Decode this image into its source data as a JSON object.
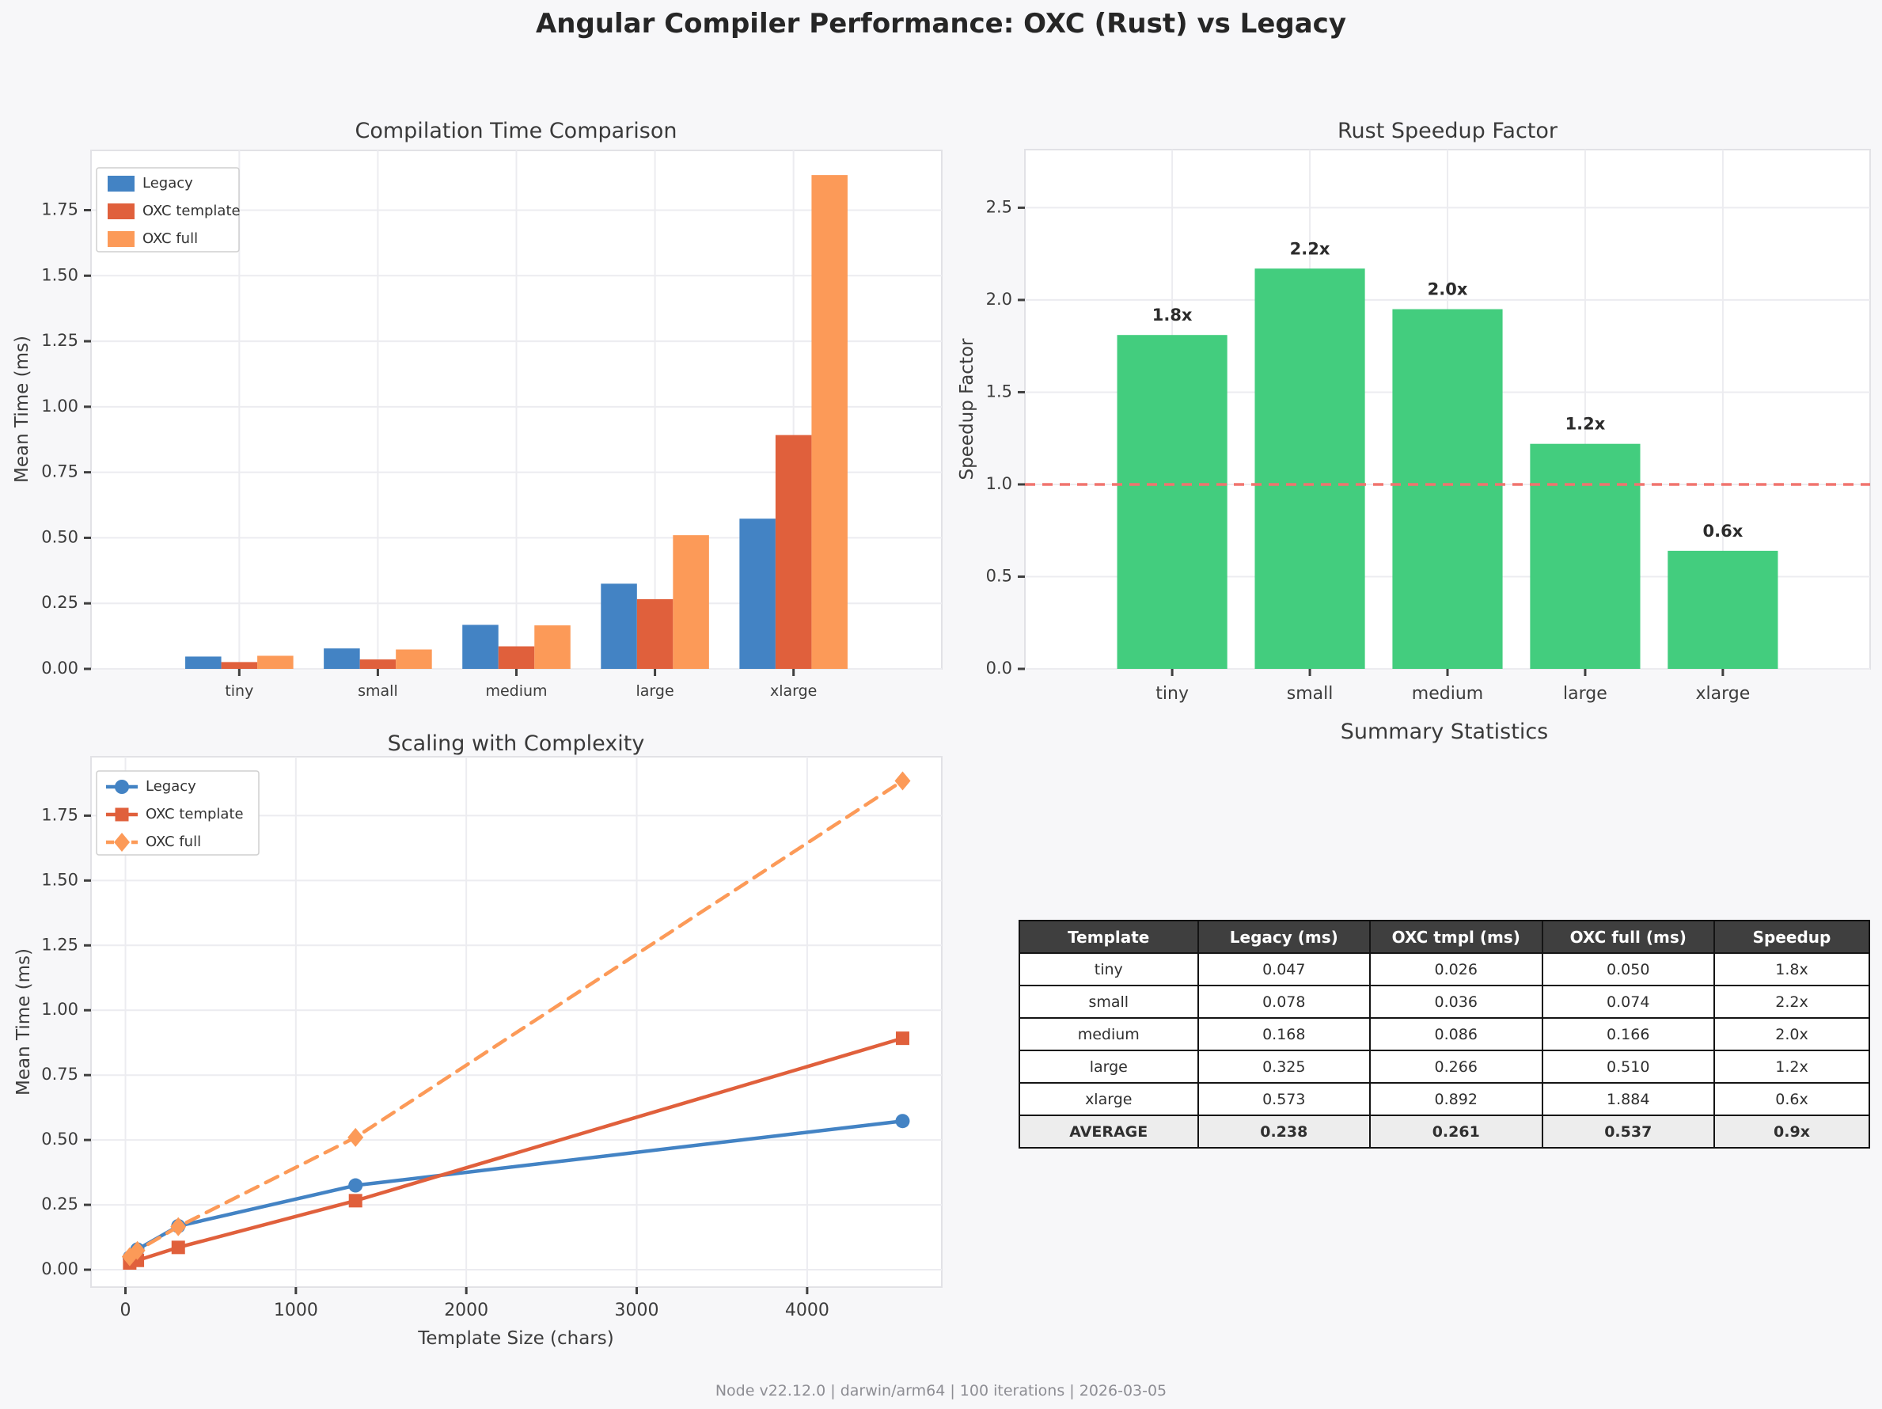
{
  "page": {
    "title": "Angular Compiler Performance: OXC (Rust) vs Legacy",
    "footer": "Node v22.12.0 | darwin/arm64 | 100 iterations | 2026-03-05"
  },
  "colors": {
    "legacy_blue": "#4383c4",
    "oxc_template_red": "#e0603c",
    "oxc_full_orange": "#fc9a58",
    "speedup_green": "#43cd7e",
    "baseline_red": "#f0746e",
    "figure_background": "#f7f7f9",
    "axes_background": "#ffffff",
    "grid": "#ececf0",
    "table_header_bg": "#3f3f3f"
  },
  "chart_data": [
    {
      "id": "compilation-time",
      "type": "bar",
      "title": "Compilation Time Comparison",
      "xlabel": "",
      "ylabel": "Mean Time (ms)",
      "categories": [
        "tiny",
        "small",
        "medium",
        "large",
        "xlarge"
      ],
      "series": [
        {
          "name": "Legacy",
          "color": "#4383c4",
          "values": [
            0.047,
            0.078,
            0.168,
            0.325,
            0.573
          ]
        },
        {
          "name": "OXC template",
          "color": "#e0603c",
          "values": [
            0.026,
            0.036,
            0.086,
            0.266,
            0.892
          ]
        },
        {
          "name": "OXC full",
          "color": "#fc9a58",
          "values": [
            0.05,
            0.074,
            0.166,
            0.51,
            1.884
          ]
        }
      ],
      "yticks": [
        "0.00",
        "0.25",
        "0.50",
        "0.75",
        "1.00",
        "1.25",
        "1.50",
        "1.75"
      ],
      "ylim": [
        0,
        1.978
      ],
      "grid": true,
      "legend_position": "upper left"
    },
    {
      "id": "speedup",
      "type": "bar",
      "title": "Rust Speedup Factor",
      "xlabel": "",
      "ylabel": "Speedup Factor",
      "categories": [
        "tiny",
        "small",
        "medium",
        "large",
        "xlarge"
      ],
      "values": [
        1.81,
        2.17,
        1.95,
        1.22,
        0.64
      ],
      "bar_labels": [
        "1.8x",
        "2.2x",
        "2.0x",
        "1.2x",
        "0.6x"
      ],
      "bar_color": "#43cd7e",
      "baseline": 1.0,
      "baseline_color": "#f0746e",
      "yticks": [
        "0.0",
        "0.5",
        "1.0",
        "1.5",
        "2.0",
        "2.5"
      ],
      "ylim": [
        0,
        2.815
      ],
      "grid": true
    },
    {
      "id": "scaling",
      "type": "line",
      "title": "Scaling with Complexity",
      "xlabel": "Template Size (chars)",
      "ylabel": "Mean Time (ms)",
      "x": [
        25,
        70,
        310,
        1350,
        4560
      ],
      "series": [
        {
          "name": "Legacy",
          "color": "#4383c4",
          "marker": "circle",
          "line_style": "solid",
          "values": [
            0.047,
            0.078,
            0.168,
            0.325,
            0.573
          ]
        },
        {
          "name": "OXC template",
          "color": "#e0603c",
          "marker": "square",
          "line_style": "solid",
          "values": [
            0.026,
            0.036,
            0.086,
            0.266,
            0.892
          ]
        },
        {
          "name": "OXC full",
          "color": "#fc9a58",
          "marker": "diamond",
          "line_style": "dashed",
          "values": [
            0.05,
            0.074,
            0.166,
            0.51,
            1.884
          ]
        }
      ],
      "xticks": [
        0,
        1000,
        2000,
        3000,
        4000
      ],
      "yticks": [
        "0.00",
        "0.25",
        "0.50",
        "0.75",
        "1.00",
        "1.25",
        "1.50",
        "1.75"
      ],
      "xlim": [
        -202,
        4790
      ],
      "ylim": [
        -0.067,
        1.977
      ],
      "grid": true,
      "legend_position": "upper left"
    },
    {
      "id": "summary-table",
      "type": "table",
      "title": "Summary Statistics",
      "columns": [
        "Template",
        "Legacy (ms)",
        "OXC tmpl (ms)",
        "OXC full (ms)",
        "Speedup"
      ],
      "rows": [
        [
          "tiny",
          "0.047",
          "0.026",
          "0.050",
          "1.8x"
        ],
        [
          "small",
          "0.078",
          "0.036",
          "0.074",
          "2.2x"
        ],
        [
          "medium",
          "0.168",
          "0.086",
          "0.166",
          "2.0x"
        ],
        [
          "large",
          "0.325",
          "0.266",
          "0.510",
          "1.2x"
        ],
        [
          "xlarge",
          "0.573",
          "0.892",
          "1.884",
          "0.6x"
        ],
        [
          "AVERAGE",
          "0.238",
          "0.261",
          "0.537",
          "0.9x"
        ]
      ],
      "average_row_index": 5
    }
  ]
}
